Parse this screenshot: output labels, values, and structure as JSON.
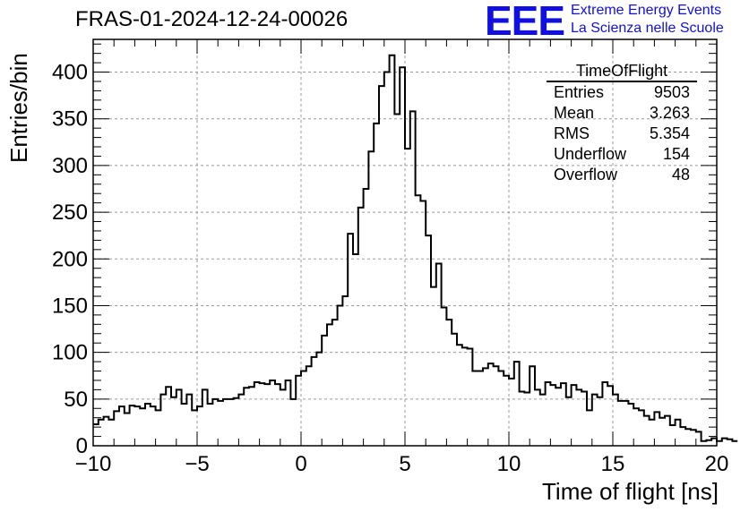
{
  "page_title": "FRAS-01-2024-12-24-00026",
  "logo": {
    "mark": "EEE",
    "line1": "Extreme Energy Events",
    "line2": "La Scienza nelle Scuole",
    "color": "#1010e0"
  },
  "stats_box": {
    "title": "TimeOfFlight",
    "rows": [
      {
        "label": "Entries",
        "value": "9503"
      },
      {
        "label": "Mean",
        "value": "3.263"
      },
      {
        "label": "RMS",
        "value": "5.354"
      },
      {
        "label": "Underflow",
        "value": "154"
      },
      {
        "label": "Overflow",
        "value": "48"
      }
    ]
  },
  "chart_data": {
    "type": "bar",
    "histogram": true,
    "xlabel": "Time of flight [ns]",
    "ylabel": "Entries/bin",
    "xlim": [
      -10,
      20
    ],
    "ylim": [
      0,
      435
    ],
    "bin_width": 0.25,
    "xticks": [
      -10,
      -5,
      0,
      5,
      10,
      15,
      20
    ],
    "yticks": [
      0,
      50,
      100,
      150,
      200,
      250,
      300,
      350,
      400
    ],
    "grid": true,
    "line_color": "#000000",
    "values": [
      23,
      28,
      31,
      28,
      37,
      42,
      35,
      43,
      42,
      40,
      45,
      42,
      38,
      55,
      63,
      52,
      60,
      45,
      55,
      38,
      42,
      60,
      45,
      50,
      48,
      50,
      50,
      51,
      55,
      62,
      63,
      68,
      67,
      66,
      70,
      66,
      60,
      70,
      50,
      75,
      80,
      85,
      95,
      100,
      118,
      130,
      135,
      150,
      160,
      227,
      205,
      255,
      275,
      315,
      345,
      385,
      400,
      418,
      355,
      405,
      318,
      358,
      268,
      262,
      225,
      170,
      195,
      148,
      135,
      120,
      108,
      105,
      104,
      80,
      80,
      83,
      88,
      85,
      80,
      75,
      72,
      90,
      58,
      57,
      85,
      60,
      55,
      68,
      65,
      62,
      67,
      52,
      65,
      60,
      58,
      38,
      55,
      52,
      68,
      64,
      55,
      48,
      48,
      45,
      40,
      38,
      32,
      28,
      36,
      30,
      32,
      22,
      28,
      20,
      18,
      17,
      15,
      5,
      6,
      8,
      5,
      8,
      7,
      5
    ]
  }
}
